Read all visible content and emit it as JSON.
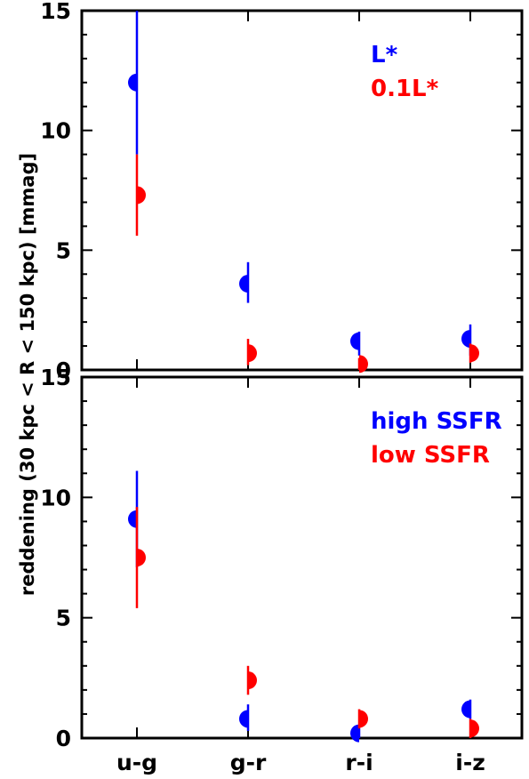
{
  "chart_data": {
    "type": "scatter",
    "ylabel": "reddening (30 kpc < R < 150 kpc) [mmag]",
    "categories": [
      "u-g",
      "g-r",
      "r-i",
      "i-z"
    ],
    "colors": {
      "blue": "#0000ff",
      "red": "#ff0000"
    },
    "panels": [
      {
        "ylim": [
          0,
          15
        ],
        "yticks": [
          "0",
          "5",
          "10",
          "15"
        ],
        "legend_position": "top-right",
        "series": [
          {
            "name": "L*",
            "color": "#0000ff",
            "marker": "left-half-circle",
            "values": [
              12.0,
              3.6,
              1.2,
              1.3
            ],
            "err_low": [
              9.0,
              2.8,
              0.6,
              0.6
            ],
            "err_high": [
              15.0,
              4.5,
              1.6,
              1.9
            ]
          },
          {
            "name": "0.1L*",
            "color": "#ff0000",
            "marker": "right-half-circle",
            "values": [
              7.3,
              0.7,
              0.25,
              0.7
            ],
            "err_low": [
              5.6,
              0.2,
              0.0,
              0.3
            ],
            "err_high": [
              9.0,
              1.3,
              0.5,
              1.1
            ]
          }
        ]
      },
      {
        "ylim": [
          0,
          15
        ],
        "yticks": [
          "0",
          "5",
          "10",
          "15"
        ],
        "legend_position": "top-right",
        "series": [
          {
            "name": "high SSFR",
            "color": "#0000ff",
            "marker": "left-half-circle",
            "values": [
              9.1,
              0.8,
              0.2,
              1.2
            ],
            "err_low": [
              7.1,
              0.3,
              0.0,
              0.8
            ],
            "err_high": [
              11.1,
              1.4,
              0.4,
              1.6
            ]
          },
          {
            "name": "low SSFR",
            "color": "#ff0000",
            "marker": "right-half-circle",
            "values": [
              7.5,
              2.4,
              0.8,
              0.4
            ],
            "err_low": [
              5.4,
              1.8,
              0.4,
              0.0
            ],
            "err_high": [
              9.6,
              3.0,
              1.2,
              0.8
            ]
          }
        ]
      }
    ]
  }
}
